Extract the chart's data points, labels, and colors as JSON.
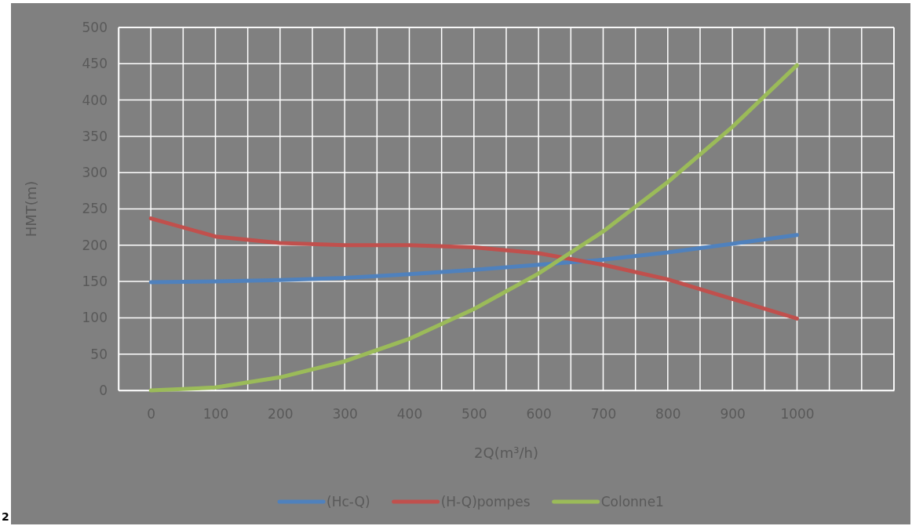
{
  "chart_data": {
    "type": "line",
    "xlabel": "2Q(m³/h)",
    "ylabel": "HMT(m)",
    "x": [
      0,
      100,
      200,
      300,
      400,
      500,
      600,
      700,
      800,
      900,
      1000
    ],
    "series": [
      {
        "name": "(Hc-Q)",
        "color": "#4f81bd",
        "values": [
          149,
          150,
          152,
          155,
          160,
          166,
          173,
          180,
          190,
          202,
          214
        ]
      },
      {
        "name": "(H-Q)pompes",
        "color": "#c0504d",
        "values": [
          237,
          212,
          203,
          200,
          200,
          197,
          189,
          173,
          153,
          126,
          99
        ]
      },
      {
        "name": "Colonne1",
        "color": "#9bbb59",
        "values": [
          0,
          4,
          18,
          40,
          71,
          112,
          161,
          219,
          287,
          363,
          448
        ]
      }
    ],
    "xlim": [
      -50,
      1150
    ],
    "xticks": [
      {
        "value": -50,
        "label": null
      },
      0,
      {
        "value": 50,
        "label": null
      },
      100,
      {
        "value": 150,
        "label": null
      },
      200,
      {
        "value": 250,
        "label": null
      },
      300,
      {
        "value": 350,
        "label": null
      },
      400,
      {
        "value": 450,
        "label": null
      },
      500,
      {
        "value": 550,
        "label": null
      },
      600,
      {
        "value": 650,
        "label": null
      },
      700,
      {
        "value": 750,
        "label": null
      },
      800,
      {
        "value": 850,
        "label": null
      },
      900,
      {
        "value": 950,
        "label": null
      },
      1000,
      {
        "value": 1050,
        "label": null
      },
      {
        "value": 1100,
        "label": null
      },
      {
        "value": 1150,
        "label": null
      }
    ],
    "ylim": [
      0,
      500
    ],
    "yticks": [
      0,
      50,
      100,
      150,
      200,
      250,
      300,
      350,
      400,
      450,
      500
    ],
    "grid": true,
    "legend": "bottom",
    "marker": "none",
    "line_style": "solid",
    "annotations": [
      "2"
    ]
  }
}
